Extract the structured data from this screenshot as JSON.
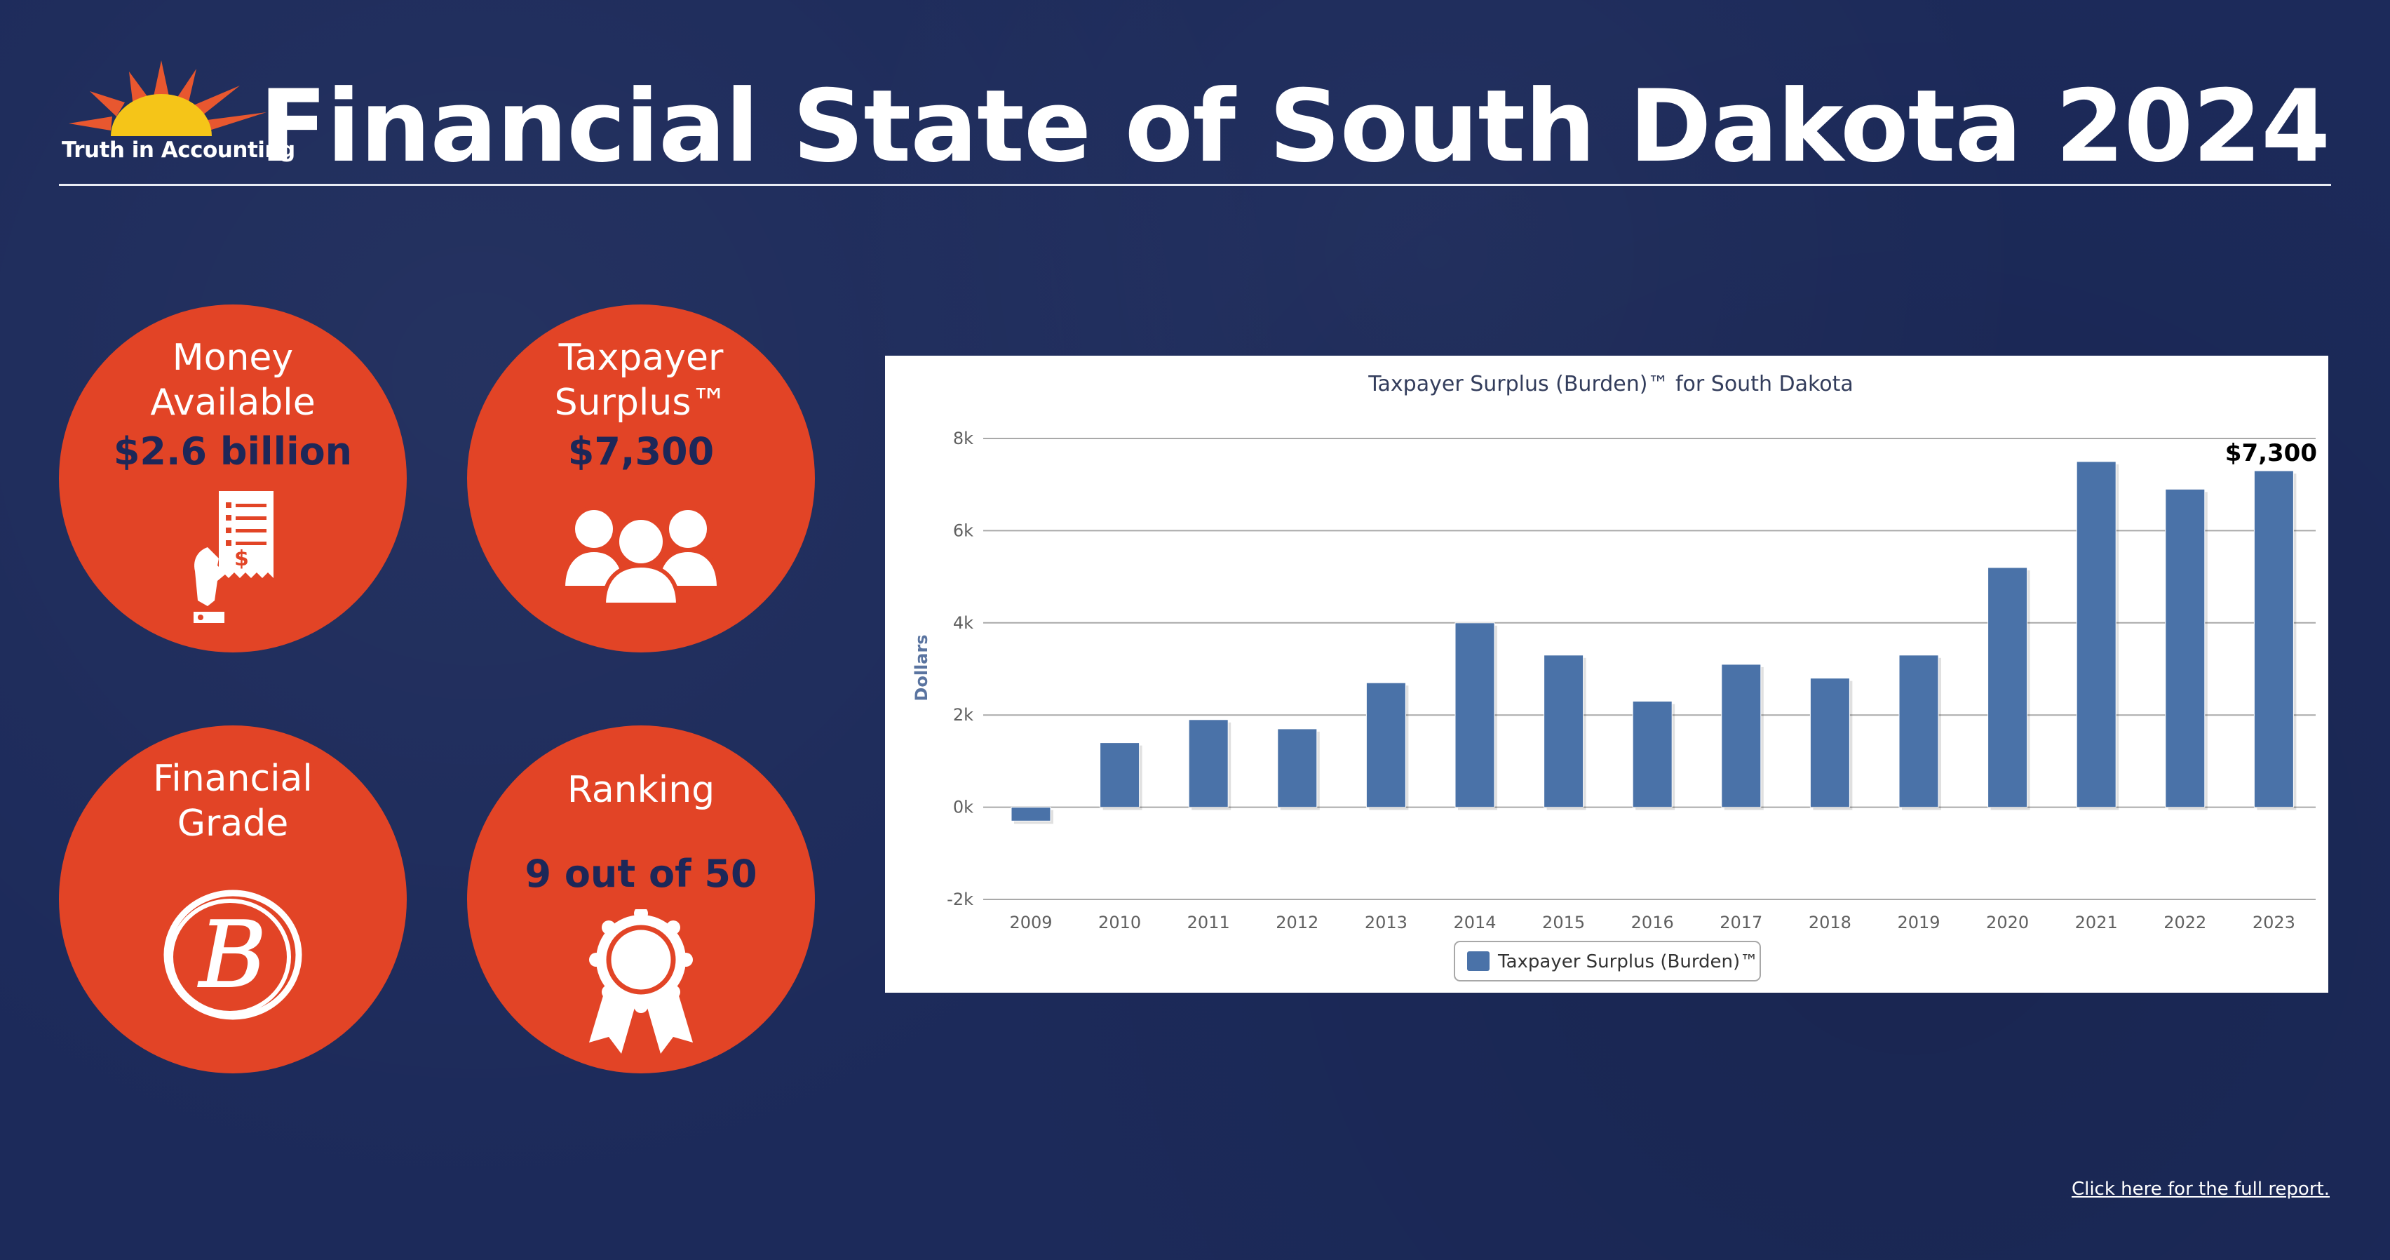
{
  "header": {
    "logo_text": "Truth in Accounting",
    "title": "Financial State of South Dakota 2024"
  },
  "cards": {
    "money": {
      "label_line1": "Money",
      "label_line2": "Available",
      "value": "$2.6 billion",
      "icon": "receipt-hand-icon"
    },
    "surplus": {
      "label_line1": "Taxpayer",
      "label_line2": "Surplus™",
      "value": "$7,300",
      "icon": "people-group-icon"
    },
    "grade": {
      "label_line1": "Financial",
      "label_line2": "Grade",
      "value": "B",
      "icon": "grade-b-icon"
    },
    "ranking": {
      "label": "Ranking",
      "value": "9 out of 50",
      "icon": "award-ribbon-icon"
    }
  },
  "footer": {
    "report_link": "Click here for the full report."
  },
  "colors": {
    "background": "#1c2a5a",
    "circle": "#e24426",
    "card_value_text": "#1d2758",
    "bar": "#4a72a8",
    "logo_sun": "#f5c518",
    "logo_rays": "#e8572f"
  },
  "chart_data": {
    "type": "bar",
    "title": "Taxpayer Surplus (Burden)™ for South Dakota",
    "xlabel": "",
    "ylabel": "Dollars",
    "categories": [
      "2009",
      "2010",
      "2011",
      "2012",
      "2013",
      "2014",
      "2015",
      "2016",
      "2017",
      "2018",
      "2019",
      "2020",
      "2021",
      "2022",
      "2023"
    ],
    "series": [
      {
        "name": "Taxpayer Surplus (Burden)™",
        "values": [
          -300,
          1400,
          1900,
          1700,
          2700,
          4000,
          3300,
          2300,
          3100,
          2800,
          3300,
          5200,
          7500,
          6900,
          7300
        ]
      }
    ],
    "ylim": [
      -2000,
      8000
    ],
    "yticks": [
      -2000,
      0,
      2000,
      4000,
      6000,
      8000
    ],
    "ytick_labels": [
      "-2k",
      "0k",
      "2k",
      "4k",
      "6k",
      "8k"
    ],
    "annotation": {
      "category": "2023",
      "text": "$7,300"
    },
    "grid": true,
    "legend_position": "bottom-center"
  }
}
